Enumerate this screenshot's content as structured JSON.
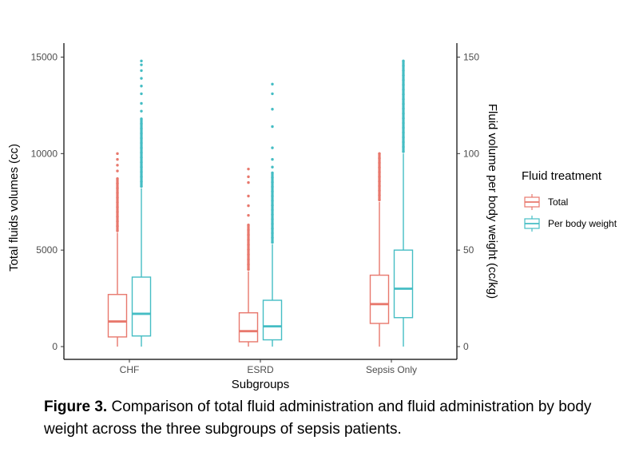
{
  "chart_data": {
    "type": "boxplot",
    "categories": [
      "CHF",
      "ESRD",
      "Sepsis Only"
    ],
    "xlabel": "Subgroups",
    "ylabel": "Total fluids volumes (cc)",
    "ylabel_right": "Fluid volume per body weight (cc/kg)",
    "ylim": [
      -500,
      15500
    ],
    "yticks": [
      0,
      5000,
      10000,
      15000
    ],
    "ylim_right": [
      -5,
      155
    ],
    "yticks_right": [
      0,
      50,
      100,
      150
    ],
    "legend_title": "Fluid treatment",
    "legend_position": "right",
    "grid": false,
    "series": [
      {
        "name": "Total",
        "color": "#E8786D",
        "axis": "left",
        "boxes": [
          {
            "category": "CHF",
            "min": 0,
            "q1": 500,
            "median": 1300,
            "q3": 2700,
            "whisker_high": 5900,
            "outliers_dense": [
              6000,
              8700
            ],
            "outliers_sparse": [
              9100,
              9400,
              9700,
              10000
            ]
          },
          {
            "category": "ESRD",
            "min": 0,
            "q1": 250,
            "median": 800,
            "q3": 1750,
            "whisker_high": 3900,
            "outliers_dense": [
              4000,
              6300
            ],
            "outliers_sparse": [
              6800,
              7300,
              7800,
              8500,
              8800,
              9200
            ]
          },
          {
            "category": "Sepsis Only",
            "min": 0,
            "q1": 1200,
            "median": 2200,
            "q3": 3700,
            "whisker_high": 7500,
            "outliers_dense": [
              7600,
              10000
            ],
            "outliers_sparse": []
          }
        ]
      },
      {
        "name": "Per body weight",
        "color": "#45BDC4",
        "axis": "right",
        "boxes": [
          {
            "category": "CHF",
            "min": 0,
            "q1": 5.5,
            "median": 17,
            "q3": 36,
            "whisker_high": 82,
            "outliers_dense": [
              83,
              118
            ],
            "outliers_sparse": [
              122,
              126,
              131,
              135,
              139,
              143,
              146,
              148
            ]
          },
          {
            "category": "ESRD",
            "min": 0,
            "q1": 3.5,
            "median": 10.5,
            "q3": 24,
            "whisker_high": 53,
            "outliers_dense": [
              54,
              90
            ],
            "outliers_sparse": [
              93,
              97,
              103,
              114,
              123,
              131,
              136
            ]
          },
          {
            "category": "Sepsis Only",
            "min": 0,
            "q1": 15,
            "median": 30,
            "q3": 50,
            "whisker_high": 100,
            "outliers_dense": [
              101,
              148
            ],
            "outliers_sparse": []
          }
        ]
      }
    ]
  },
  "caption": {
    "label": "Figure 3.",
    "text": " Comparison of total fluid administration and fluid administration by body weight across the three subgroups of sepsis patients."
  }
}
